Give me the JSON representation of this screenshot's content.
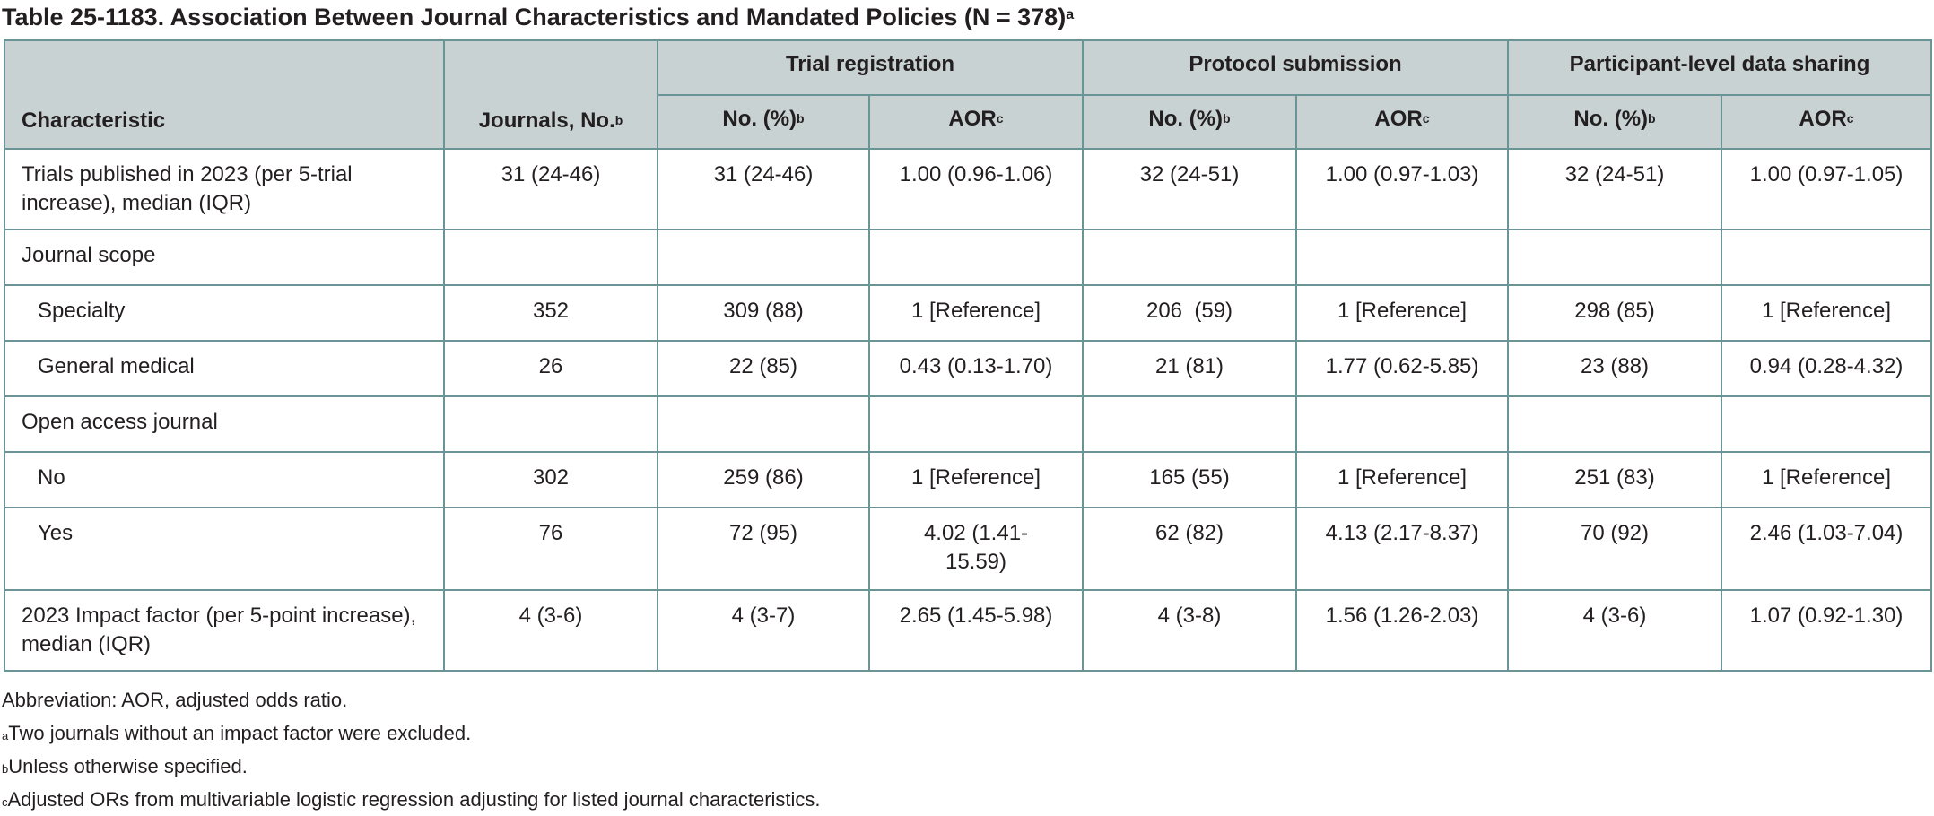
{
  "title": {
    "text": "Table 25-1183. Association Between Journal Characteristics and Mandated Policies (N = 378)",
    "sup": "a"
  },
  "header": {
    "characteristic": "Characteristic",
    "journals": "Journals, No.",
    "journals_sup": "b",
    "groups": [
      "Trial registration",
      "Protocol submission",
      "Participant-level data sharing"
    ],
    "no_pct": "No. (%)",
    "no_pct_sup": "b",
    "aor": "AOR",
    "aor_sup": "c"
  },
  "rows": [
    {
      "label": "Trials published in 2023 (per 5-trial increase), median (IQR)",
      "cells": [
        "31 (24-46)",
        "31 (24-46)",
        "1.00 (0.96-1.06)",
        "32 (24-51)",
        "1.00 (0.97-1.03)",
        "32 (24-51)",
        "1.00 (0.97-1.05)"
      ]
    },
    {
      "label": "Journal scope",
      "cells": [
        "",
        "",
        "",
        "",
        "",
        "",
        ""
      ]
    },
    {
      "label": "Specialty",
      "cells": [
        "352",
        "309 (88)",
        "1 [Reference]",
        "206  (59)",
        "1 [Reference]",
        "298 (85)",
        "1 [Reference]"
      ]
    },
    {
      "label": "General medical",
      "cells": [
        "26",
        "22 (85)",
        "0.43 (0.13-1.70)",
        "21 (81)",
        "1.77 (0.62-5.85)",
        "23 (88)",
        "0.94 (0.28-4.32)"
      ]
    },
    {
      "label": "Open access journal",
      "cells": [
        "",
        "",
        "",
        "",
        "",
        "",
        ""
      ]
    },
    {
      "label": "No",
      "cells": [
        "302",
        "259 (86)",
        "1 [Reference]",
        "165 (55)",
        "1 [Reference]",
        "251 (83)",
        "1 [Reference]"
      ]
    },
    {
      "label": "Yes",
      "cells": [
        "76",
        "72 (95)",
        "4.02 (1.41-15.59)",
        "62 (82)",
        "4.13 (2.17-8.37)",
        "70 (92)",
        "2.46 (1.03-7.04)"
      ]
    },
    {
      "label": "2023 Impact factor (per 5-point increase), median (IQR)",
      "cells": [
        "4 (3-6)",
        "4 (3-7)",
        "2.65 (1.45-5.98)",
        "4 (3-8)",
        "1.56 (1.26-2.03)",
        "4 (3-6)",
        "1.07 (0.92-1.30)"
      ]
    }
  ],
  "footnotes": [
    {
      "sup": "",
      "text": "Abbreviation: AOR, adjusted odds ratio."
    },
    {
      "sup": "a",
      "text": "Two journals without an impact factor were excluded."
    },
    {
      "sup": "b",
      "text": "Unless otherwise specified."
    },
    {
      "sup": "c",
      "text": "Adjusted ORs from multivariable logistic regression adjusting for listed journal characteristics."
    }
  ]
}
